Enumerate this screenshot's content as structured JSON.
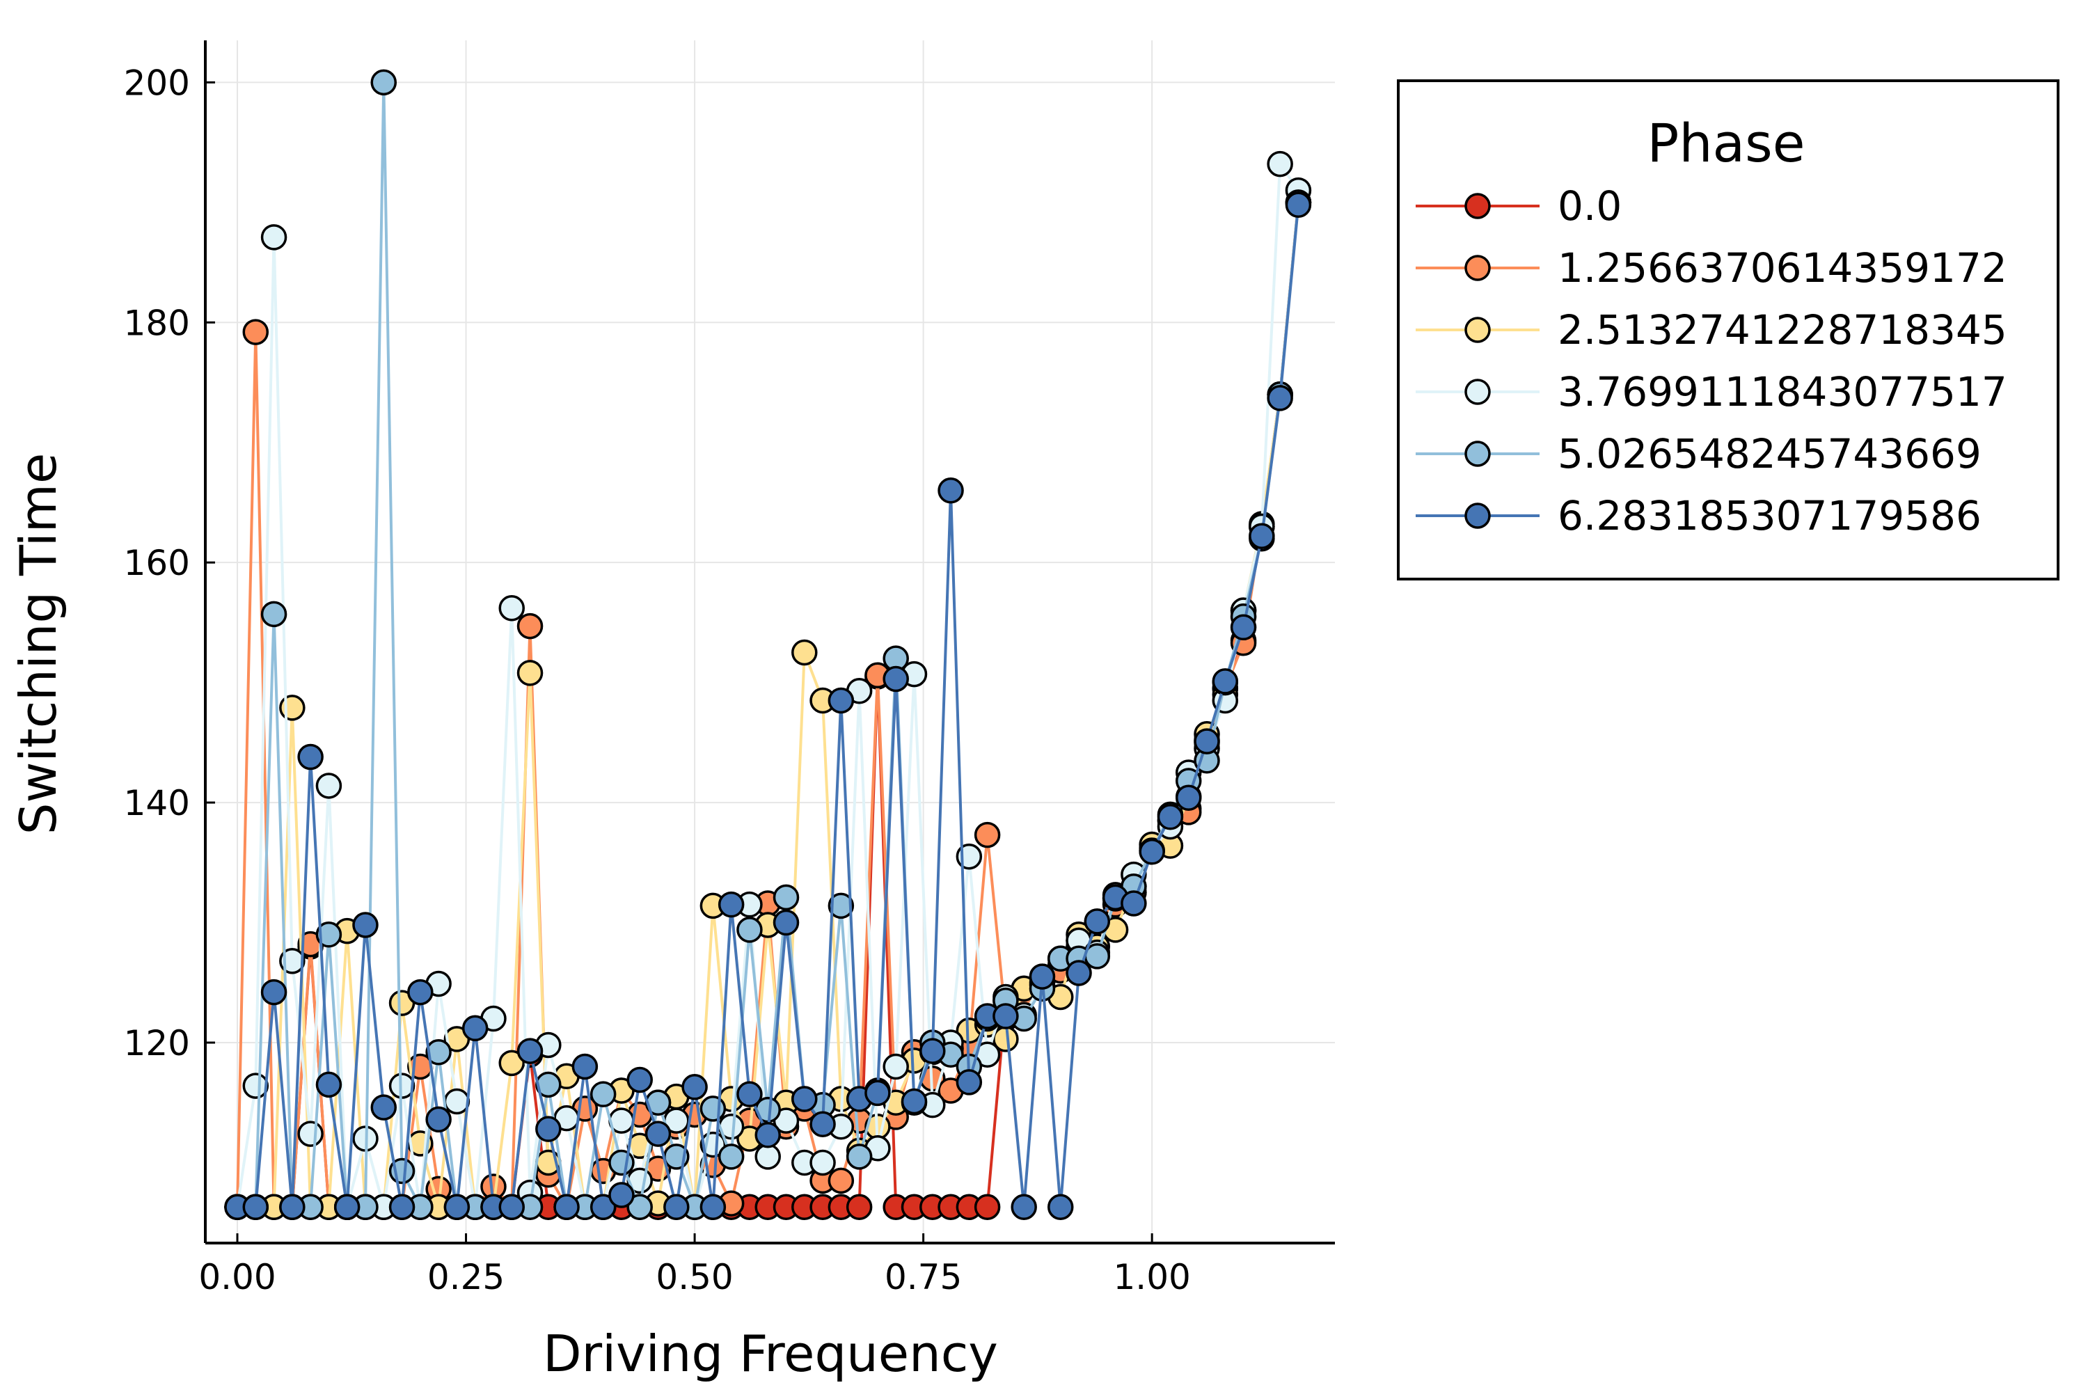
{
  "chart_data": {
    "type": "line",
    "xlabel": "Driving Frequency",
    "ylabel": "Switching Time",
    "xlim": [
      -0.035,
      1.2
    ],
    "ylim": [
      103.3,
      203.5
    ],
    "xticks": [
      0.0,
      0.25,
      0.5,
      0.75,
      1.0
    ],
    "xtick_labels": [
      "0.00",
      "0.25",
      "0.50",
      "0.75",
      "1.00"
    ],
    "yticks": [
      120,
      140,
      160,
      180,
      200
    ],
    "ytick_labels": [
      "120",
      "140",
      "160",
      "180",
      "200"
    ],
    "grid": true,
    "legend": {
      "title": "Phase",
      "placement": "outside-top-right"
    },
    "x": [
      0.0,
      0.02,
      0.04,
      0.06,
      0.08,
      0.1,
      0.12,
      0.14,
      0.16,
      0.18,
      0.2,
      0.22,
      0.24,
      0.26,
      0.28,
      0.3,
      0.32,
      0.34,
      0.36,
      0.38,
      0.4,
      0.42,
      0.44,
      0.46,
      0.48,
      0.5,
      0.52,
      0.54,
      0.56,
      0.58,
      0.6,
      0.62,
      0.64,
      0.66,
      0.68,
      0.7,
      0.72,
      0.74,
      0.76,
      0.78,
      0.8,
      0.82,
      0.84,
      0.86,
      0.88,
      0.9,
      0.92,
      0.94,
      0.96,
      0.98,
      1.0,
      1.02,
      1.04,
      1.06,
      1.08,
      1.1,
      1.12,
      1.14,
      1.16
    ],
    "series": [
      {
        "name": "0.0",
        "color": "#d7301f",
        "values": [
          106.3,
          106.3,
          106.3,
          106.3,
          128.0,
          106.3,
          106.3,
          106.3,
          106.3,
          106.3,
          106.3,
          106.3,
          106.3,
          106.3,
          106.3,
          106.3,
          119.0,
          106.3,
          106.3,
          106.3,
          106.3,
          106.3,
          106.3,
          106.3,
          106.3,
          106.3,
          106.3,
          106.3,
          106.3,
          106.3,
          106.3,
          106.3,
          106.3,
          106.3,
          106.3,
          150.5,
          106.3,
          106.3,
          106.3,
          106.3,
          106.3,
          106.3,
          123.5,
          124.5,
          125.5,
          126.5,
          128.0,
          130.0,
          132.0,
          132.5,
          136.0,
          138.5,
          139.5,
          145.0,
          149.5,
          153.5,
          163.0,
          174.0,
          190.0
        ]
      },
      {
        "name": "1.2566370614359172",
        "color": "#fc8d59",
        "values": [
          106.3,
          179.2,
          106.3,
          106.3,
          128.2,
          106.3,
          106.3,
          106.3,
          106.3,
          106.3,
          118.0,
          107.8,
          106.3,
          106.3,
          108.0,
          106.3,
          154.7,
          109.0,
          106.3,
          114.5,
          109.3,
          116.0,
          114.0,
          109.5,
          113.0,
          114.0,
          109.8,
          106.6,
          113.5,
          131.6,
          113.0,
          114.5,
          108.5,
          108.5,
          113.5,
          150.6,
          113.8,
          119.2,
          117.0,
          116.0,
          119.5,
          137.3,
          122.0,
          124.0,
          125.0,
          126.0,
          128.5,
          129.5,
          131.5,
          132.5,
          136.2,
          138.5,
          139.2,
          145.2,
          149.5,
          153.3,
          163.0,
          174.0,
          190.0
        ]
      },
      {
        "name": "2.5132741228718345",
        "color": "#fee090",
        "values": [
          106.3,
          106.3,
          106.3,
          147.9,
          106.3,
          106.3,
          129.3,
          106.3,
          106.3,
          123.3,
          111.6,
          106.3,
          120.3,
          106.3,
          106.3,
          118.3,
          150.8,
          110.0,
          117.2,
          106.3,
          106.3,
          116.0,
          111.4,
          106.6,
          115.5,
          106.3,
          131.4,
          115.3,
          112.0,
          129.8,
          115.0,
          152.5,
          148.5,
          115.3,
          111.0,
          113.0,
          115.0,
          118.5,
          119.2,
          119.5,
          121.0,
          121.5,
          120.3,
          124.5,
          124.8,
          123.8,
          129.0,
          128.0,
          129.4,
          133.0,
          136.5,
          136.4,
          140.5,
          145.7,
          149.0,
          156.0,
          163.2,
          174.0,
          190.0
        ]
      },
      {
        "name": "3.7699111843077517",
        "color": "#e0f3f8",
        "values": [
          106.3,
          116.4,
          187.1,
          126.8,
          112.4,
          141.4,
          106.3,
          112.0,
          106.3,
          116.4,
          106.3,
          124.9,
          115.1,
          106.3,
          122.0,
          156.2,
          107.5,
          119.8,
          113.7,
          106.3,
          106.3,
          113.5,
          108.5,
          115.0,
          113.5,
          106.3,
          111.5,
          113.0,
          131.5,
          110.5,
          113.5,
          110.0,
          110.0,
          113.0,
          149.3,
          111.2,
          118.0,
          150.7,
          114.8,
          120.0,
          135.5,
          119.0,
          123.8,
          122.3,
          125.0,
          127.0,
          128.5,
          127.5,
          132.3,
          134.0,
          136.0,
          138.0,
          142.5,
          144.5,
          148.5,
          156.0,
          163.0,
          193.2,
          191.0
        ]
      },
      {
        "name": "5.026548245743669",
        "color": "#91bfdb",
        "values": [
          106.3,
          106.3,
          155.7,
          106.3,
          106.3,
          129.0,
          106.3,
          106.3,
          200.0,
          109.3,
          106.3,
          119.2,
          106.3,
          106.3,
          106.3,
          106.3,
          106.3,
          116.5,
          106.3,
          106.3,
          115.7,
          110.0,
          106.3,
          115.0,
          110.5,
          106.3,
          114.5,
          110.5,
          129.4,
          114.4,
          132.1,
          115.3,
          114.8,
          131.4,
          110.5,
          116.0,
          152.0,
          115.0,
          120.0,
          119.0,
          118.0,
          122.0,
          123.5,
          122.0,
          124.5,
          127.0,
          127.0,
          127.2,
          132.0,
          133.0,
          136.0,
          139.0,
          141.8,
          143.5,
          150.0,
          155.5,
          162.0,
          174.0,
          190.0
        ]
      },
      {
        "name": "6.283185307179586",
        "color": "#4575b4",
        "values": [
          106.3,
          106.3,
          124.2,
          106.3,
          143.8,
          116.5,
          106.3,
          129.8,
          114.6,
          106.3,
          124.2,
          113.6,
          106.3,
          121.2,
          106.3,
          106.3,
          119.3,
          112.8,
          106.3,
          118.0,
          106.3,
          107.3,
          116.9,
          112.4,
          106.3,
          116.3,
          106.3,
          131.5,
          115.7,
          112.3,
          130.0,
          115.3,
          113.2,
          148.5,
          115.3,
          115.8,
          150.3,
          115.1,
          119.3,
          166.0,
          116.7,
          122.2,
          122.2,
          106.3,
          125.5,
          106.3,
          125.8,
          130.1,
          132.1,
          131.6,
          135.9,
          138.8,
          140.4,
          145.1,
          150.1,
          154.6,
          162.2,
          173.7,
          189.8
        ]
      }
    ]
  }
}
